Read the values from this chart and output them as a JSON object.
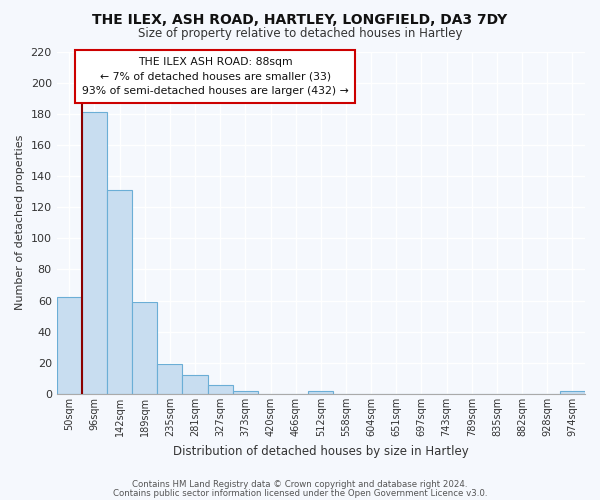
{
  "title1": "THE ILEX, ASH ROAD, HARTLEY, LONGFIELD, DA3 7DY",
  "title2": "Size of property relative to detached houses in Hartley",
  "xlabel": "Distribution of detached houses by size in Hartley",
  "ylabel": "Number of detached properties",
  "bar_labels": [
    "50sqm",
    "96sqm",
    "142sqm",
    "189sqm",
    "235sqm",
    "281sqm",
    "327sqm",
    "373sqm",
    "420sqm",
    "466sqm",
    "512sqm",
    "558sqm",
    "604sqm",
    "651sqm",
    "697sqm",
    "743sqm",
    "789sqm",
    "835sqm",
    "882sqm",
    "928sqm",
    "974sqm"
  ],
  "bar_values": [
    62,
    181,
    131,
    59,
    19,
    12,
    6,
    2,
    0,
    0,
    2,
    0,
    0,
    0,
    0,
    0,
    0,
    0,
    0,
    0,
    2
  ],
  "bar_color_face": "#c8ddf0",
  "bar_color_edge": "#6baed6",
  "highlight_color": "#8b0000",
  "annotation_title": "THE ILEX ASH ROAD: 88sqm",
  "annotation_line1": "← 7% of detached houses are smaller (33)",
  "annotation_line2": "93% of semi-detached houses are larger (432) →",
  "ylim": [
    0,
    220
  ],
  "yticks": [
    0,
    20,
    40,
    60,
    80,
    100,
    120,
    140,
    160,
    180,
    200,
    220
  ],
  "footer1": "Contains HM Land Registry data © Crown copyright and database right 2024.",
  "footer2": "Contains public sector information licensed under the Open Government Licence v3.0.",
  "bg_color": "#f5f8fd",
  "plot_bg_color": "#f5f8fd",
  "grid_color": "#ffffff"
}
